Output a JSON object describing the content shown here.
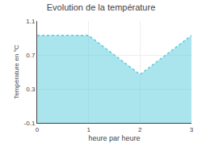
{
  "chart_data": {
    "type": "area",
    "title": "Evolution de la température",
    "x_label": "heure par heure",
    "y_label": "Température en °C",
    "x": [
      0,
      1,
      2,
      3
    ],
    "values": [
      0.93,
      0.93,
      0.47,
      0.93
    ],
    "color": "#55ccdd",
    "line_style": "dotted",
    "xlim": [
      0,
      3
    ],
    "ylim": [
      -0.1,
      1.1
    ],
    "xticks": [
      0,
      1,
      2,
      3
    ],
    "yticks": [
      -0.1,
      0.3,
      0.7,
      1.1
    ],
    "grid": true
  }
}
